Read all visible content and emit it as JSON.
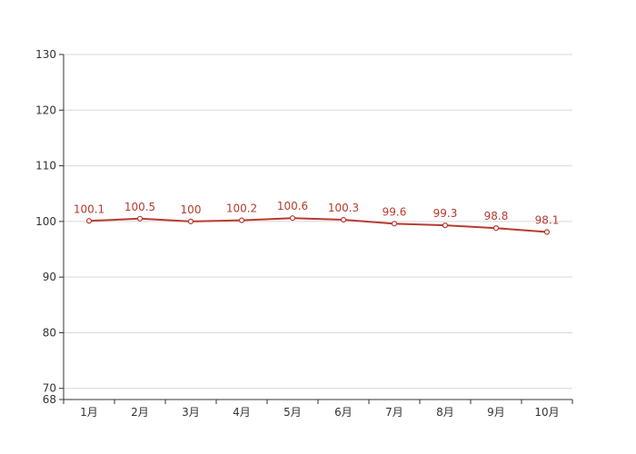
{
  "chart_data": {
    "type": "line",
    "categories": [
      "1月",
      "2月",
      "3月",
      "4月",
      "5月",
      "6月",
      "7月",
      "8月",
      "9月",
      "10月"
    ],
    "series": [
      {
        "values": [
          100.1,
          100.5,
          100,
          100.2,
          100.6,
          100.3,
          99.6,
          99.3,
          98.8,
          98.1
        ],
        "data_labels": [
          "100.1",
          "100.5",
          "100",
          "100.2",
          "100.6",
          "100.3",
          "99.6",
          "99.3",
          "98.8",
          "98.1"
        ],
        "color": "#b83b2f"
      }
    ],
    "ylim": [
      68,
      130
    ],
    "yticks": [
      68,
      70,
      80,
      90,
      100,
      110,
      120,
      130
    ],
    "ytick_labels": [
      "68",
      "70",
      "80",
      "90",
      "100",
      "110",
      "120",
      "130"
    ],
    "grid": true,
    "title": "",
    "xlabel": "",
    "ylabel": ""
  }
}
